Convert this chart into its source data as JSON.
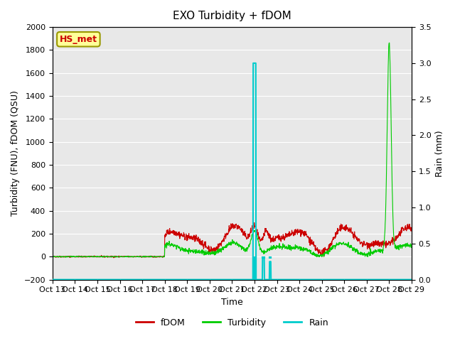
{
  "title": "EXO Turbidity + fDOM",
  "ylabel_left": "Turbidity (FNU), fDOM (QSU)",
  "ylabel_right": "Rain (mm)",
  "xlabel": "Time",
  "ylim_left": [
    -200,
    2000
  ],
  "ylim_right": [
    0.0,
    3.5
  ],
  "yticks_left": [
    -200,
    0,
    200,
    400,
    600,
    800,
    1000,
    1200,
    1400,
    1600,
    1800,
    2000
  ],
  "yticks_right": [
    0.0,
    0.5,
    1.0,
    1.5,
    2.0,
    2.5,
    3.0,
    3.5
  ],
  "xtick_positions": [
    0,
    1,
    2,
    3,
    4,
    5,
    6,
    7,
    8,
    9,
    10,
    11,
    12,
    13,
    14,
    15,
    16
  ],
  "xtick_labels": [
    "Oct 13",
    "Oct 14",
    "Oct 15",
    "Oct 16",
    "Oct 17",
    "Oct 18",
    "Oct 19",
    "Oct 20",
    "Oct 21",
    "Oct 22",
    "Oct 23",
    "Oct 24",
    "Oct 25",
    "Oct 26",
    "Oct 27",
    "Oct 28",
    "Oct 29"
  ],
  "xlim": [
    0,
    16
  ],
  "bg_color": "#e8e8e8",
  "annotation_text": "HS_met",
  "annotation_box_color": "#ffff99",
  "annotation_text_color": "#cc0000",
  "fdom_color": "#cc0000",
  "turbidity_color": "#00cc00",
  "rain_color": "#00cccc",
  "legend_labels": [
    "fDOM",
    "Turbidity",
    "Rain"
  ]
}
